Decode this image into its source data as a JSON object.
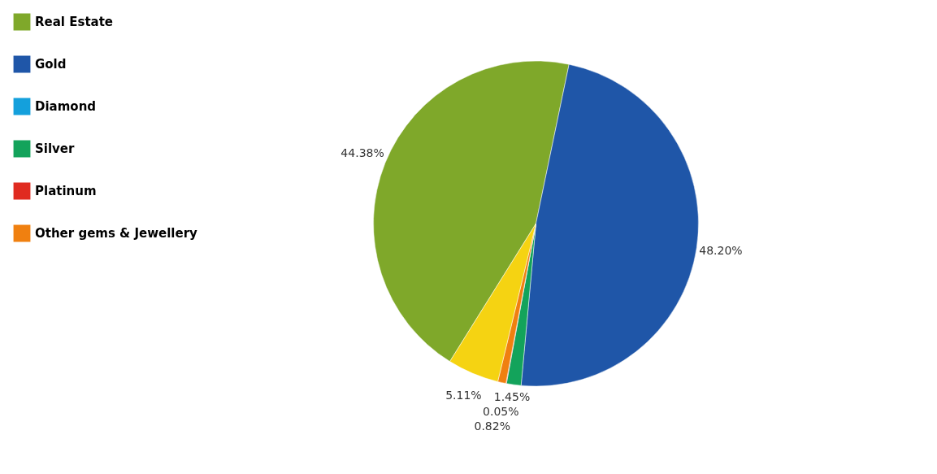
{
  "chart_data": {
    "type": "pie",
    "categories": [
      "Real Estate",
      "Gold",
      "Diamond",
      "Silver",
      "Platinum",
      "Other gems & Jewellery",
      null
    ],
    "values": [
      44.38,
      48.2,
      null,
      1.45,
      0.05,
      0.82,
      5.11
    ],
    "value_labels": [
      "44.38%",
      "48.20%",
      null,
      "1.45%",
      "0.05%",
      "0.82%",
      "5.11%"
    ],
    "colors": [
      "#7fa82a",
      "#1f56a8",
      "#14a0dc",
      "#13a35b",
      "#e02b20",
      "#f08010",
      "#f5d312"
    ],
    "legend": "left"
  }
}
